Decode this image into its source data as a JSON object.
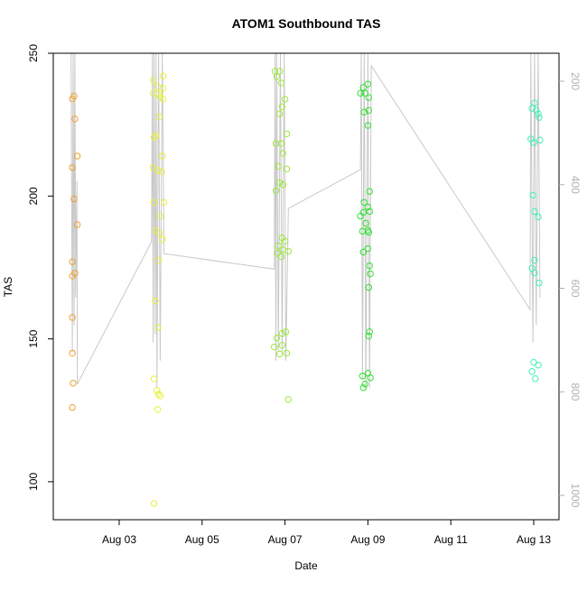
{
  "chart_data": {
    "type": "scatter",
    "title": "ATOM1 Southbound TAS",
    "x_label": "Date",
    "y_label": "TAS",
    "xlim": [
      1.41,
      13.61
    ],
    "xticks": [
      {
        "value": 3,
        "label": "Aug 03"
      },
      {
        "value": 5,
        "label": "Aug 05"
      },
      {
        "value": 7,
        "label": "Aug 07"
      },
      {
        "value": 9,
        "label": "Aug 09"
      },
      {
        "value": 11,
        "label": "Aug 11"
      },
      {
        "value": 13,
        "label": "Aug 13"
      }
    ],
    "ylim": [
      86.7,
      250
    ],
    "yticks": [
      100,
      150,
      200,
      250
    ],
    "y2lim": [
      1047,
      146
    ],
    "y2ticks": [
      200,
      400,
      600,
      800,
      1000
    ],
    "series": [
      {
        "type": "line",
        "axis": "y2",
        "color": "#c8c8c8",
        "x": [
          1.84,
          1.87,
          1.89,
          1.91,
          1.93,
          1.95,
          1.98,
          1.99,
          3.78,
          3.8,
          3.82,
          3.84,
          3.87,
          3.89,
          3.91,
          3.95,
          3.99,
          4.04,
          4.08,
          6.74,
          6.76,
          6.78,
          6.8,
          6.84,
          6.89,
          6.93,
          6.98,
          7.02,
          7.08,
          8.82,
          8.84,
          8.87,
          8.91,
          8.95,
          9.0,
          9.04,
          9.08,
          12.91,
          12.93,
          12.98,
          13.02,
          13.06,
          13.11,
          13.15
        ],
        "values": [
          146,
          723,
          146,
          671,
          146,
          618,
          392,
          785,
          510,
          146,
          705,
          146,
          688,
          146,
          793,
          146,
          740,
          146,
          533,
          563,
          146,
          740,
          146,
          723,
          146,
          723,
          146,
          740,
          446,
          371,
          146,
          775,
          146,
          793,
          146,
          793,
          170,
          641,
          146,
          705,
          146,
          671,
          146,
          618
        ]
      },
      {
        "color": "#f0a030",
        "x": [
          1.91,
          1.87,
          1.93,
          1.99,
          1.87,
          1.91,
          1.99,
          1.87,
          1.87,
          1.93,
          1.87,
          1.87,
          1.89,
          1.87
        ],
        "values": [
          235,
          234,
          227,
          214,
          210,
          199,
          190,
          177,
          172,
          173,
          157.5,
          145,
          134.5,
          126
        ]
      },
      {
        "color": "#e6f03a",
        "x": [
          4.06,
          3.82,
          3.93,
          4.06,
          3.82,
          3.95,
          3.99,
          4.06,
          3.97,
          3.89,
          3.84,
          4.04,
          3.82,
          3.93,
          4.02,
          3.84,
          4.08,
          3.99,
          3.87,
          3.97,
          4.04,
          3.95,
          3.87,
          3.93,
          3.84,
          3.91,
          3.95,
          3.99,
          3.93,
          3.84
        ],
        "values": [
          242,
          240.5,
          238.3,
          237.7,
          236,
          235.8,
          234.8,
          233.9,
          227.8,
          221.2,
          220.6,
          214,
          210,
          209,
          208.5,
          197.8,
          197.8,
          193,
          188,
          187,
          184.8,
          177.5,
          163.3,
          154,
          136,
          132,
          130.7,
          130,
          125.3,
          92.4
        ]
      },
      {
        "color": "#9ce83a",
        "x": [
          6.76,
          6.87,
          6.8,
          6.91,
          7.0,
          6.93,
          6.87,
          7.04,
          6.78,
          6.91,
          6.95,
          6.84,
          7.04,
          6.87,
          6.95,
          6.78,
          6.93,
          7.0,
          6.84,
          6.95,
          7.08,
          6.82,
          6.91,
          7.02,
          6.93,
          6.8,
          6.93,
          6.74,
          6.87,
          7.04,
          7.08
        ],
        "values": [
          243.7,
          243.7,
          241.8,
          239.6,
          233.9,
          231.3,
          228.8,
          221.8,
          218.4,
          218.4,
          215,
          210.4,
          209.5,
          204.7,
          204,
          201.9,
          185.4,
          184.2,
          182.6,
          181.3,
          180.7,
          180,
          178.8,
          152.5,
          151.9,
          150.3,
          147.8,
          147.2,
          144.7,
          145,
          128.8
        ]
      },
      {
        "color": "#30e030",
        "x": [
          9.0,
          8.89,
          8.82,
          8.93,
          9.02,
          8.91,
          9.02,
          9.0,
          9.04,
          8.91,
          9.0,
          8.89,
          9.04,
          8.82,
          8.95,
          8.87,
          9.0,
          9.02,
          9.0,
          8.89,
          9.04,
          9.06,
          9.02,
          9.04,
          9.02,
          8.87,
          9.0,
          9.06,
          8.93,
          8.89
        ],
        "values": [
          239.2,
          238,
          236,
          236,
          234.5,
          229.4,
          230,
          224.7,
          201.6,
          197.8,
          196.2,
          194.3,
          194.6,
          193,
          190.5,
          187.7,
          188,
          187.3,
          181.6,
          180.4,
          175.6,
          172.8,
          168,
          152.5,
          151,
          137,
          138,
          136.4,
          134.2,
          132.9
        ]
      },
      {
        "color": "#40f0b8",
        "x": [
          12.96,
          13.02,
          13.06,
          13.11,
          13.13,
          12.93,
          13.0,
          13.15,
          12.98,
          13.02,
          13.11,
          13.02,
          12.96,
          13.02,
          13.13,
          13.0,
          13.11,
          12.96,
          13.04
        ],
        "values": [
          230.7,
          232.6,
          230,
          228.8,
          227.5,
          220,
          218.7,
          219.6,
          200.3,
          194.6,
          192.7,
          177.5,
          174.7,
          173.1,
          169.6,
          141.8,
          140.8,
          138.6,
          136.1
        ]
      }
    ]
  }
}
